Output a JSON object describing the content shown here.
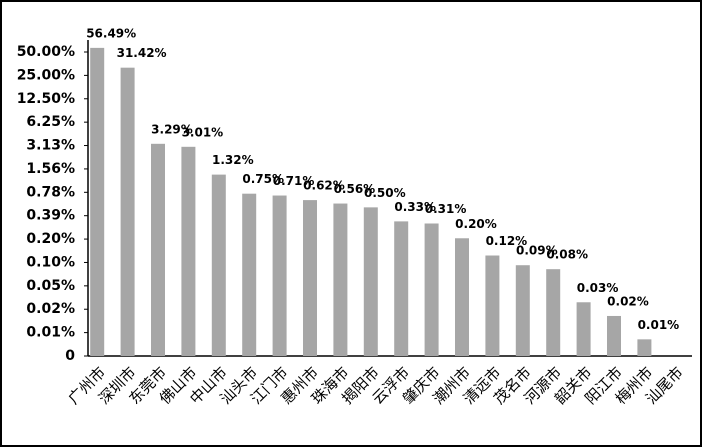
{
  "chart_data": {
    "type": "bar",
    "categories": [
      "广州市",
      "深圳市",
      "东莞市",
      "佛山市",
      "中山市",
      "汕头市",
      "江门市",
      "惠州市",
      "珠海市",
      "揭阳市",
      "云浮市",
      "肇庆市",
      "潮州市",
      "清远市",
      "茂名市",
      "河源市",
      "韶关市",
      "阳江市",
      "梅州市",
      "汕尾市"
    ],
    "values": [
      56.49,
      31.42,
      3.29,
      3.01,
      1.32,
      0.75,
      0.71,
      0.62,
      0.56,
      0.5,
      0.33,
      0.31,
      0.2,
      0.12,
      0.09,
      0.08,
      0.03,
      0.02,
      0.01,
      null
    ],
    "value_labels": [
      "56.49%",
      "31.42%",
      "3.29%",
      "3.01%",
      "1.32%",
      "0.75%",
      "0.71%",
      "0.62%",
      "0.56%",
      "0.50%",
      "0.33%",
      "0.31%",
      "0.20%",
      "0.12%",
      "0.09%",
      "0.08%",
      "0.03%",
      "0.02%",
      "0.01%",
      null
    ],
    "color": "#a6a6a6",
    "log_scale": true,
    "ylim": [
      0.006103515625,
      50
    ],
    "yticks": [
      {
        "value": 0.006103515625,
        "label": "0"
      },
      {
        "value": 0.01220703125,
        "label": "0.01%"
      },
      {
        "value": 0.0244140625,
        "label": "0.02%"
      },
      {
        "value": 0.048828125,
        "label": "0.05%"
      },
      {
        "value": 0.09765625,
        "label": "0.10%"
      },
      {
        "value": 0.1953125,
        "label": "0.20%"
      },
      {
        "value": 0.390625,
        "label": "0.39%"
      },
      {
        "value": 0.78125,
        "label": "0.78%"
      },
      {
        "value": 1.5625,
        "label": "1.56%"
      },
      {
        "value": 3.125,
        "label": "3.13%"
      },
      {
        "value": 6.25,
        "label": "6.25%"
      },
      {
        "value": 12.5,
        "label": "12.50%"
      },
      {
        "value": 25,
        "label": "25.00%"
      },
      {
        "value": 50,
        "label": "50.00%"
      }
    ],
    "grid": false
  }
}
